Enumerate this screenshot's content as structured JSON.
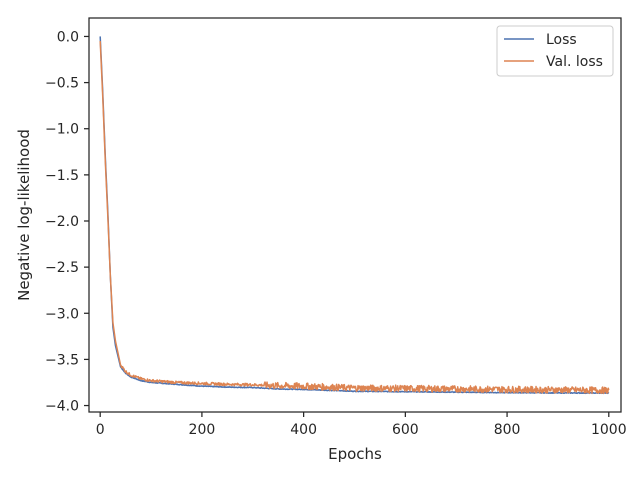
{
  "chart_data": {
    "type": "line",
    "title": "",
    "xlabel": "Epochs",
    "ylabel": "Negative log-likelihood",
    "xlim": [
      -22,
      1024
    ],
    "ylim": [
      -4.07,
      0.2
    ],
    "x_ticks": [
      0,
      200,
      400,
      600,
      800,
      1000
    ],
    "x_tick_labels": [
      "0",
      "200",
      "400",
      "600",
      "800",
      "1000"
    ],
    "y_ticks": [
      0.0,
      -0.5,
      -1.0,
      -1.5,
      -2.0,
      -2.5,
      -3.0,
      -3.5,
      -4.0
    ],
    "y_tick_labels": [
      "0.0",
      "−0.5",
      "−1.0",
      "−1.5",
      "−2.0",
      "−2.5",
      "−3.0",
      "−3.5",
      "−4.0"
    ],
    "grid": false,
    "legend_position": "top-right",
    "series": [
      {
        "name": "Loss",
        "color": "#4c72b0",
        "x": [
          0,
          5,
          10,
          15,
          20,
          25,
          30,
          40,
          50,
          60,
          80,
          100,
          150,
          200,
          250,
          300,
          350,
          400,
          450,
          500,
          600,
          700,
          800,
          900,
          1000
        ],
        "y": [
          0.0,
          -0.6,
          -1.3,
          -1.9,
          -2.6,
          -3.15,
          -3.35,
          -3.58,
          -3.65,
          -3.69,
          -3.73,
          -3.75,
          -3.77,
          -3.79,
          -3.8,
          -3.805,
          -3.82,
          -3.825,
          -3.835,
          -3.845,
          -3.85,
          -3.855,
          -3.86,
          -3.863,
          -3.865
        ]
      },
      {
        "name": "Val. loss",
        "color": "#dd8452",
        "x": [
          0,
          5,
          10,
          15,
          20,
          25,
          30,
          40,
          50,
          60,
          80,
          100,
          150,
          200,
          250,
          300,
          350,
          400,
          450,
          500,
          600,
          700,
          800,
          900,
          1000
        ],
        "y": [
          -0.05,
          -0.65,
          -1.35,
          -1.95,
          -2.6,
          -3.1,
          -3.3,
          -3.56,
          -3.63,
          -3.67,
          -3.71,
          -3.73,
          -3.75,
          -3.76,
          -3.77,
          -3.775,
          -3.785,
          -3.79,
          -3.8,
          -3.81,
          -3.815,
          -3.82,
          -3.825,
          -3.83,
          -3.835
        ],
        "noise_amplitude": 0.035
      }
    ]
  }
}
